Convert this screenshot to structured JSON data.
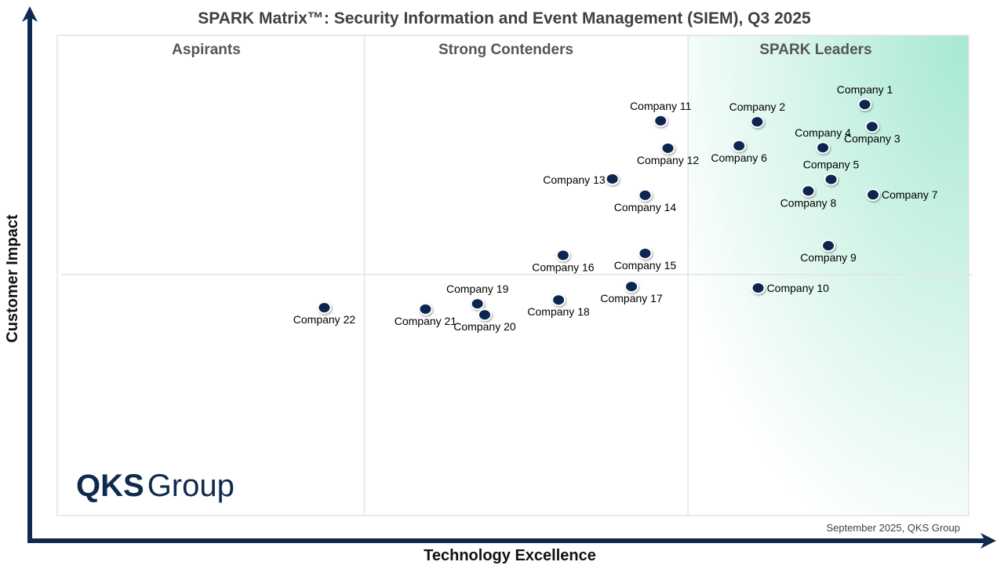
{
  "chart_data": {
    "type": "scatter",
    "title": "SPARK Matrix™: Security Information and Event Management (SIEM), Q3 2025",
    "xlabel": "Technology Excellence",
    "ylabel": "Customer Impact",
    "xlim": [
      0,
      10
    ],
    "ylim": [
      0,
      10
    ],
    "grid": false,
    "quadrant_dividers": {
      "x": [
        3.37,
        6.92
      ],
      "y": 5.02
    },
    "regions": [
      "Aspirants",
      "Strong Contenders",
      "SPARK Leaders"
    ],
    "footnote": "September 2025, QKS Group",
    "logo_text": "QKS Group",
    "colors": {
      "axis": "#0f2a4f",
      "point": "#0d2550",
      "leaders_fill": "#a6e8d4",
      "region_label": "#555555"
    },
    "points": [
      {
        "name": "Company 1",
        "x": 8.86,
        "y": 8.56,
        "label": "above"
      },
      {
        "name": "Company 2",
        "x": 7.68,
        "y": 8.2,
        "label": "above"
      },
      {
        "name": "Company 3",
        "x": 8.94,
        "y": 8.1,
        "label": "below"
      },
      {
        "name": "Company 4",
        "x": 8.4,
        "y": 7.66,
        "label": "above"
      },
      {
        "name": "Company 5",
        "x": 8.49,
        "y": 7.0,
        "label": "above"
      },
      {
        "name": "Company 6",
        "x": 7.48,
        "y": 7.7,
        "label": "below"
      },
      {
        "name": "Company 7",
        "x": 8.95,
        "y": 6.68,
        "label": "right"
      },
      {
        "name": "Company 8",
        "x": 8.24,
        "y": 6.76,
        "label": "below"
      },
      {
        "name": "Company 9",
        "x": 8.46,
        "y": 5.62,
        "label": "below"
      },
      {
        "name": "Company 10",
        "x": 7.69,
        "y": 4.74,
        "label": "right"
      },
      {
        "name": "Company 11",
        "x": 6.62,
        "y": 8.22,
        "label": "above"
      },
      {
        "name": "Company 12",
        "x": 6.7,
        "y": 7.65,
        "label": "below"
      },
      {
        "name": "Company 13",
        "x": 6.09,
        "y": 7.01,
        "label": "left"
      },
      {
        "name": "Company 14",
        "x": 6.45,
        "y": 6.67,
        "label": "below"
      },
      {
        "name": "Company 15",
        "x": 6.45,
        "y": 5.46,
        "label": "below"
      },
      {
        "name": "Company 16",
        "x": 5.55,
        "y": 5.42,
        "label": "below"
      },
      {
        "name": "Company 17",
        "x": 6.3,
        "y": 4.77,
        "label": "below"
      },
      {
        "name": "Company 18",
        "x": 5.5,
        "y": 4.49,
        "label": "below"
      },
      {
        "name": "Company 19",
        "x": 4.61,
        "y": 4.41,
        "label": "above"
      },
      {
        "name": "Company 20",
        "x": 4.69,
        "y": 4.18,
        "label": "below"
      },
      {
        "name": "Company 21",
        "x": 4.04,
        "y": 4.3,
        "label": "below"
      },
      {
        "name": "Company 22",
        "x": 2.93,
        "y": 4.33,
        "label": "below"
      }
    ]
  }
}
